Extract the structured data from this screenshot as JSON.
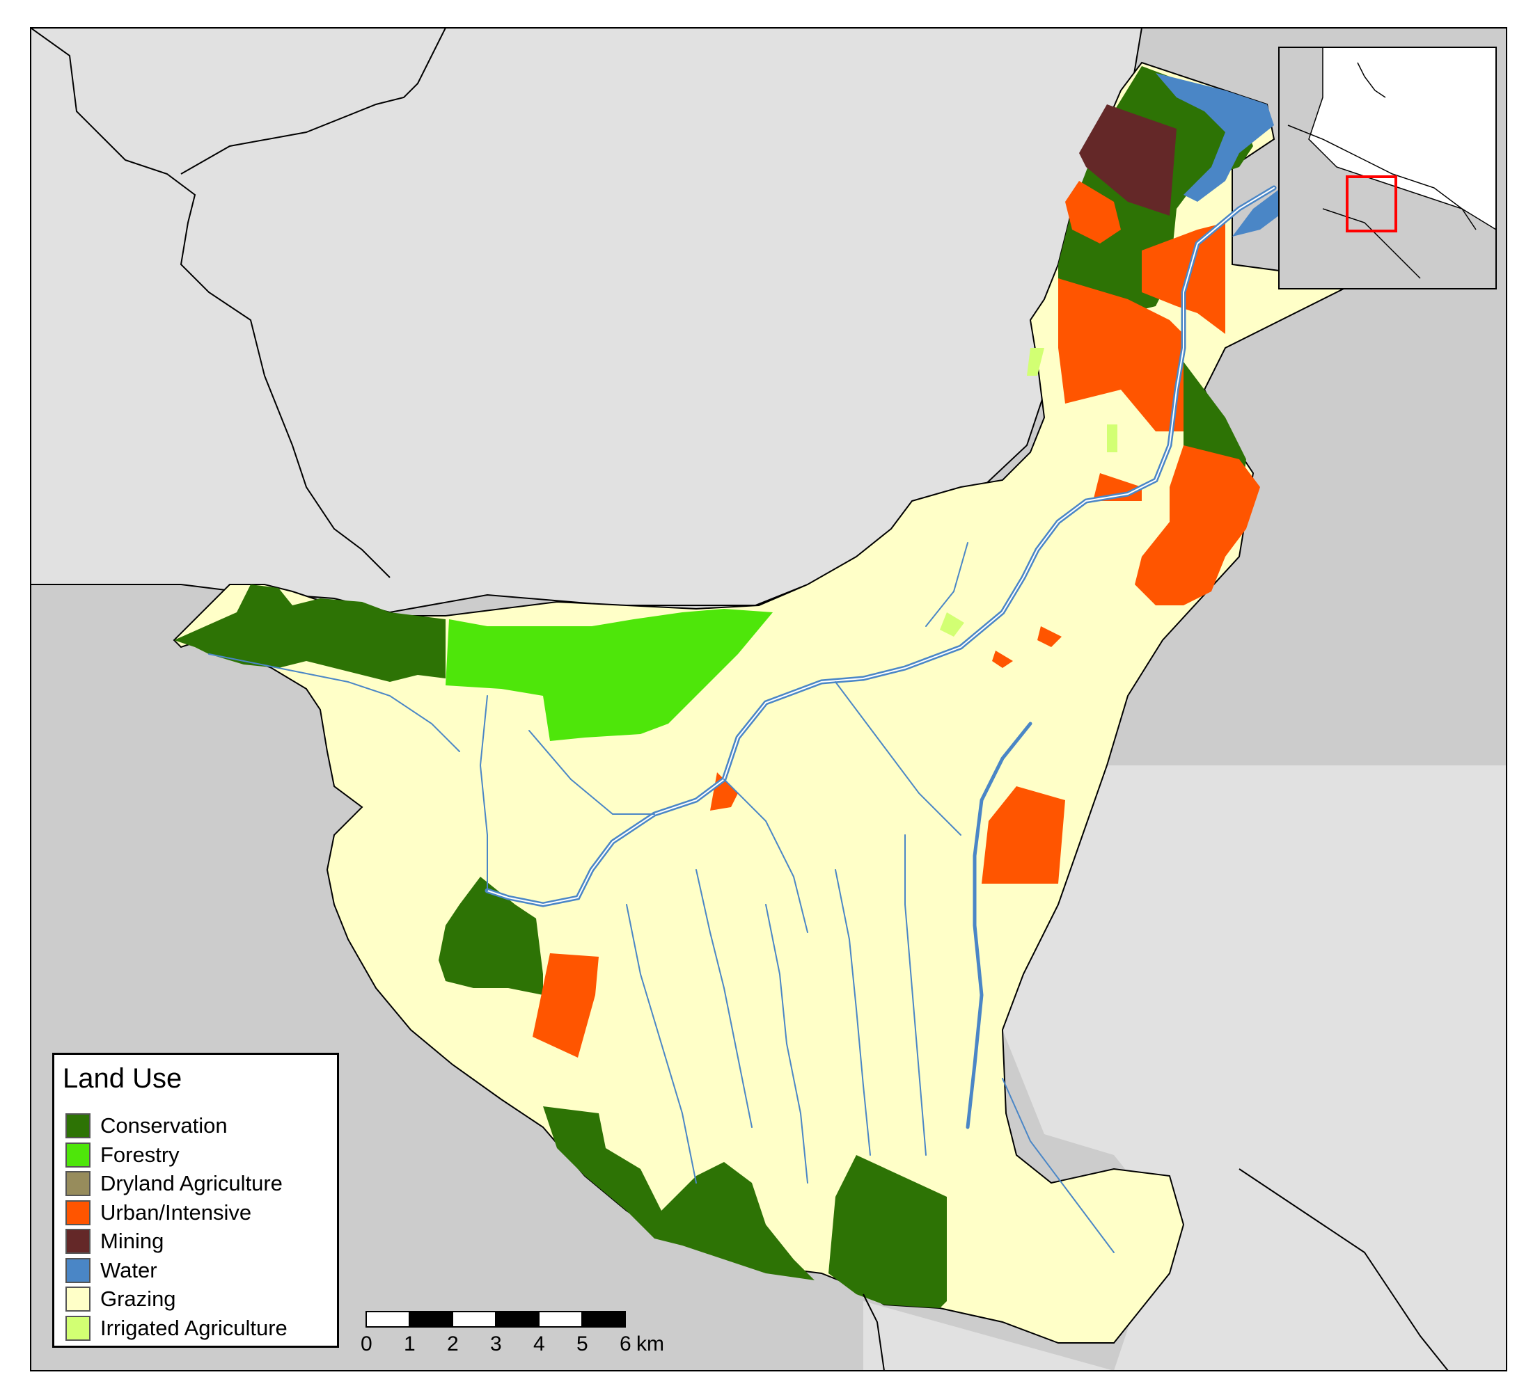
{
  "legend": {
    "title": "Land Use",
    "items": [
      {
        "label": "Conservation",
        "color": "#2d7305"
      },
      {
        "label": "Forestry",
        "color": "#4ee60a"
      },
      {
        "label": "Dryland Agriculture",
        "color": "#978c5c"
      },
      {
        "label": "Urban/Intensive",
        "color": "#ff5500"
      },
      {
        "label": "Mining",
        "color": "#642828"
      },
      {
        "label": "Water",
        "color": "#4a86c6"
      },
      {
        "label": "Grazing",
        "color": "#ffffc8"
      },
      {
        "label": "Irrigated Agriculture",
        "color": "#d2ff73"
      }
    ]
  },
  "scale_bar": {
    "ticks": [
      "0",
      "1",
      "2",
      "3",
      "4",
      "5",
      "6"
    ],
    "unit": "km"
  },
  "colors": {
    "outside_light": "#e1e1e1",
    "outside_dark": "#cccccc",
    "river": "#4a86c6",
    "inset_highlight": "#ff0000"
  }
}
